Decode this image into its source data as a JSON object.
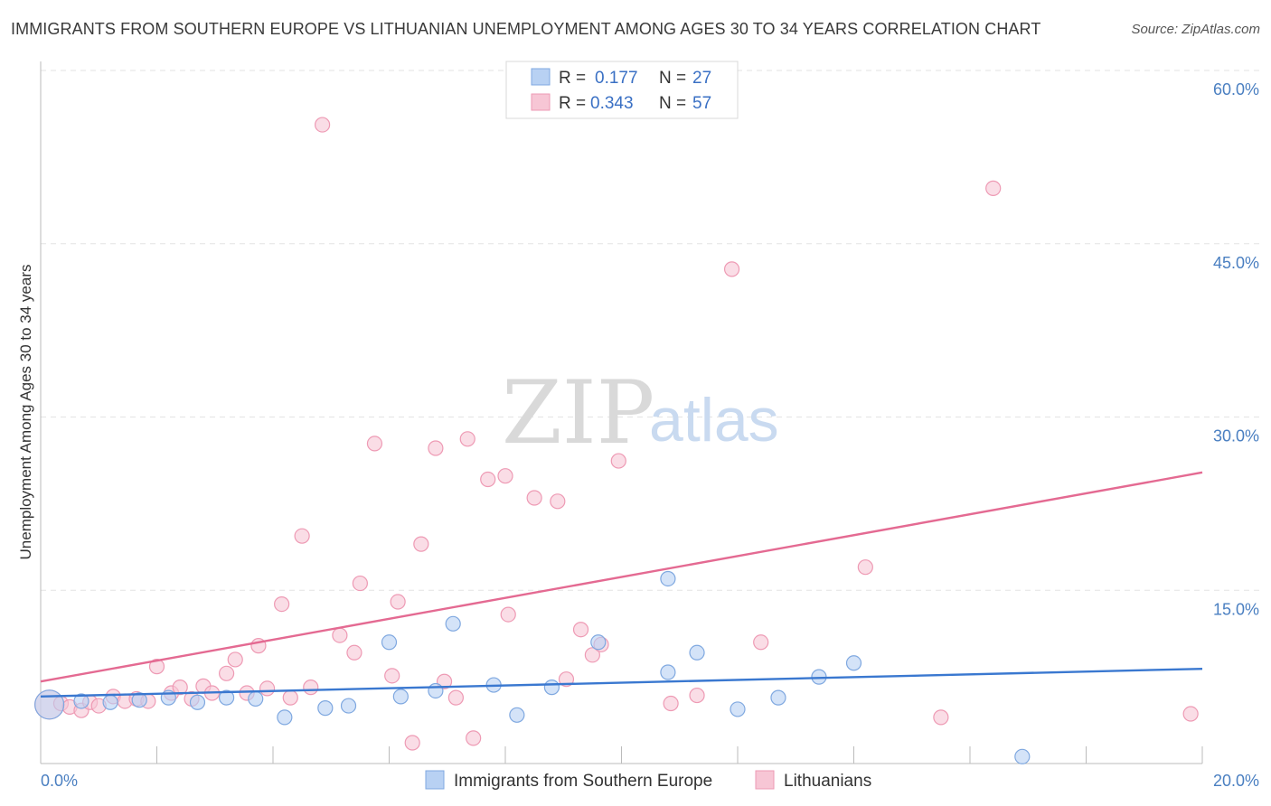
{
  "header": {
    "title": "IMMIGRANTS FROM SOUTHERN EUROPE VS LITHUANIAN UNEMPLOYMENT AMONG AGES 30 TO 34 YEARS CORRELATION CHART",
    "source": "Source: ZipAtlas.com"
  },
  "watermark": {
    "zip": "ZIP",
    "atlas": "atlas"
  },
  "legend": {
    "rows": [
      {
        "r_label": "R =",
        "r_value": "0.177",
        "n_label": "N =",
        "n_value": "27"
      },
      {
        "r_label": "R =",
        "r_value": "0.343",
        "n_label": "N =",
        "n_value": "57"
      }
    ]
  },
  "bottom_legend": {
    "series_0": "Immigrants from Southern Europe",
    "series_1": "Lithuanians"
  },
  "colors": {
    "series_0_fill": "#b8d1f3",
    "series_0_stroke": "#7fa8e0",
    "series_0_line": "#3a78d0",
    "series_1_fill": "#f7c6d5",
    "series_1_stroke": "#ee9ab4",
    "series_1_line": "#e46a92",
    "grid": "#e3e3e3",
    "axis": "#bbbbbb",
    "tick_text": "#4a7fc1"
  },
  "chart_data": {
    "type": "scatter",
    "title": "IMMIGRANTS FROM SOUTHERN EUROPE VS LITHUANIAN UNEMPLOYMENT AMONG AGES 30 TO 34 YEARS CORRELATION CHART",
    "xlabel": "",
    "ylabel": "Unemployment Among Ages 30 to 34 years",
    "xlim": [
      0,
      20
    ],
    "ylim": [
      0,
      60
    ],
    "x_tick_labels": [
      "0.0%",
      "20.0%"
    ],
    "y_ticks": [
      15,
      30,
      45,
      60
    ],
    "y_tick_labels": [
      "15.0%",
      "30.0%",
      "45.0%",
      "60.0%"
    ],
    "grid": true,
    "legend_position": "top-center",
    "series": [
      {
        "name": "Immigrants from Southern Europe",
        "R": 0.177,
        "N": 27,
        "trend": {
          "x": [
            0,
            20
          ],
          "y": [
            5.8,
            8.2
          ]
        },
        "points": [
          {
            "x": 0.15,
            "y": 5.1,
            "big": true
          },
          {
            "x": 0.7,
            "y": 5.4
          },
          {
            "x": 1.2,
            "y": 5.3
          },
          {
            "x": 1.7,
            "y": 5.5
          },
          {
            "x": 2.2,
            "y": 5.7
          },
          {
            "x": 2.7,
            "y": 5.3
          },
          {
            "x": 3.2,
            "y": 5.7
          },
          {
            "x": 3.7,
            "y": 5.6
          },
          {
            "x": 4.2,
            "y": 4.0
          },
          {
            "x": 4.9,
            "y": 4.8
          },
          {
            "x": 5.3,
            "y": 5.0
          },
          {
            "x": 6.0,
            "y": 10.5
          },
          {
            "x": 6.2,
            "y": 5.8
          },
          {
            "x": 6.8,
            "y": 6.3
          },
          {
            "x": 7.1,
            "y": 12.1
          },
          {
            "x": 7.8,
            "y": 6.8
          },
          {
            "x": 8.2,
            "y": 4.2
          },
          {
            "x": 8.8,
            "y": 6.6
          },
          {
            "x": 9.6,
            "y": 10.5
          },
          {
            "x": 10.8,
            "y": 16.0
          },
          {
            "x": 10.8,
            "y": 7.9
          },
          {
            "x": 11.3,
            "y": 9.6
          },
          {
            "x": 12.0,
            "y": 4.7
          },
          {
            "x": 12.7,
            "y": 5.7
          },
          {
            "x": 13.4,
            "y": 7.5
          },
          {
            "x": 14.0,
            "y": 8.7
          },
          {
            "x": 16.9,
            "y": 0.6
          }
        ]
      },
      {
        "name": "Lithuanians",
        "R": 0.343,
        "N": 57,
        "trend": {
          "x": [
            0,
            20
          ],
          "y": [
            7.1,
            25.2
          ]
        },
        "points": [
          {
            "x": 0.15,
            "y": 5.1,
            "big": true
          },
          {
            "x": 0.35,
            "y": 5.2
          },
          {
            "x": 0.5,
            "y": 4.9
          },
          {
            "x": 0.7,
            "y": 4.6
          },
          {
            "x": 0.85,
            "y": 5.3
          },
          {
            "x": 1.0,
            "y": 5.0
          },
          {
            "x": 1.25,
            "y": 5.8
          },
          {
            "x": 1.45,
            "y": 5.4
          },
          {
            "x": 1.65,
            "y": 5.6
          },
          {
            "x": 1.85,
            "y": 5.4
          },
          {
            "x": 2.0,
            "y": 8.4
          },
          {
            "x": 2.25,
            "y": 6.1
          },
          {
            "x": 2.4,
            "y": 6.6
          },
          {
            "x": 2.6,
            "y": 5.6
          },
          {
            "x": 2.8,
            "y": 6.7
          },
          {
            "x": 2.95,
            "y": 6.1
          },
          {
            "x": 3.2,
            "y": 7.8
          },
          {
            "x": 3.35,
            "y": 9.0
          },
          {
            "x": 3.55,
            "y": 6.1
          },
          {
            "x": 3.75,
            "y": 10.2
          },
          {
            "x": 3.9,
            "y": 6.5
          },
          {
            "x": 4.15,
            "y": 13.8
          },
          {
            "x": 4.3,
            "y": 5.7
          },
          {
            "x": 4.5,
            "y": 19.7
          },
          {
            "x": 4.65,
            "y": 6.6
          },
          {
            "x": 4.85,
            "y": 55.3
          },
          {
            "x": 5.15,
            "y": 11.1
          },
          {
            "x": 5.4,
            "y": 9.6
          },
          {
            "x": 5.5,
            "y": 15.6
          },
          {
            "x": 5.75,
            "y": 27.7
          },
          {
            "x": 6.05,
            "y": 7.6
          },
          {
            "x": 6.15,
            "y": 14.0
          },
          {
            "x": 6.4,
            "y": 1.8
          },
          {
            "x": 6.55,
            "y": 19.0
          },
          {
            "x": 6.8,
            "y": 27.3
          },
          {
            "x": 6.95,
            "y": 7.1
          },
          {
            "x": 7.15,
            "y": 5.7
          },
          {
            "x": 7.35,
            "y": 28.1
          },
          {
            "x": 7.45,
            "y": 2.2
          },
          {
            "x": 7.7,
            "y": 24.6
          },
          {
            "x": 8.0,
            "y": 24.9
          },
          {
            "x": 8.05,
            "y": 12.9
          },
          {
            "x": 8.5,
            "y": 23.0
          },
          {
            "x": 8.9,
            "y": 22.7
          },
          {
            "x": 9.05,
            "y": 7.3
          },
          {
            "x": 9.3,
            "y": 11.6
          },
          {
            "x": 9.5,
            "y": 9.4
          },
          {
            "x": 9.65,
            "y": 10.3
          },
          {
            "x": 9.95,
            "y": 26.2
          },
          {
            "x": 10.85,
            "y": 5.2
          },
          {
            "x": 11.3,
            "y": 5.9
          },
          {
            "x": 11.9,
            "y": 42.8
          },
          {
            "x": 12.4,
            "y": 10.5
          },
          {
            "x": 14.2,
            "y": 17.0
          },
          {
            "x": 15.5,
            "y": 4.0
          },
          {
            "x": 16.4,
            "y": 49.8
          },
          {
            "x": 19.8,
            "y": 4.3
          }
        ]
      }
    ]
  }
}
